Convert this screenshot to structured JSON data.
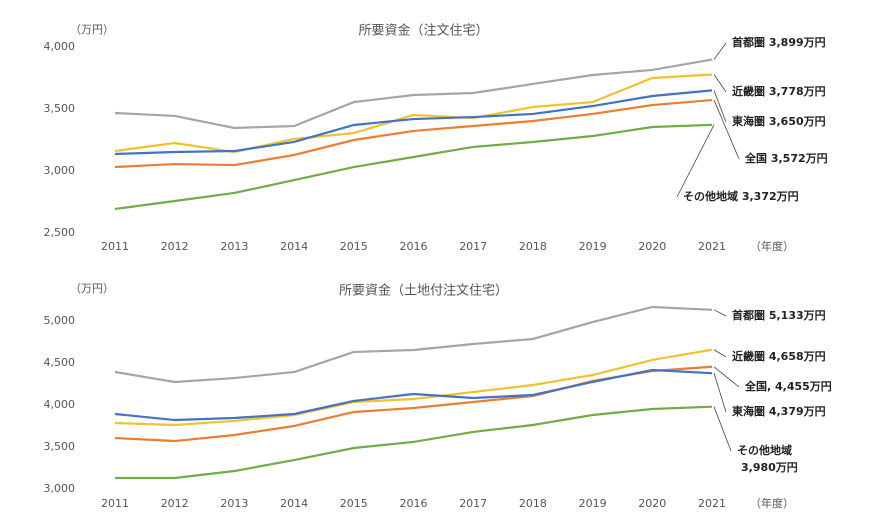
{
  "chart_data": [
    {
      "type": "line",
      "title": "所要資金（注文住宅）",
      "y_unit": "（万円）",
      "x_unit": "（年度）",
      "categories": [
        "2011",
        "2012",
        "2013",
        "2014",
        "2015",
        "2016",
        "2017",
        "2018",
        "2019",
        "2020",
        "2021"
      ],
      "ylim": [
        2500,
        4000
      ],
      "yticks": [
        {
          "value": 2500,
          "label": "2,500"
        },
        {
          "value": 3000,
          "label": "3,000"
        },
        {
          "value": 3500,
          "label": "3,500"
        },
        {
          "value": 4000,
          "label": "4,000"
        }
      ],
      "grid": false,
      "series": [
        {
          "name": "首都圏 3,899万円",
          "color": "#a5a5a5",
          "values": [
            3468,
            3444,
            3347,
            3363,
            3556,
            3613,
            3629,
            3702,
            3774,
            3815,
            3899
          ]
        },
        {
          "name": "近畿圏 3,778万円",
          "color": "#f2c12e",
          "values": [
            3161,
            3226,
            3153,
            3258,
            3306,
            3452,
            3427,
            3516,
            3556,
            3750,
            3778
          ]
        },
        {
          "name": "東海圏 3,650万円",
          "color": "#4472c4",
          "values": [
            3137,
            3153,
            3161,
            3234,
            3371,
            3419,
            3435,
            3460,
            3524,
            3605,
            3650
          ]
        },
        {
          "name": "全国 3,572万円",
          "color": "#ed7d31",
          "values": [
            3032,
            3056,
            3048,
            3129,
            3250,
            3323,
            3363,
            3403,
            3460,
            3532,
            3572
          ]
        },
        {
          "name": "その他地域 3,372万円",
          "color": "#70ad47",
          "values": [
            2694,
            2758,
            2823,
            2927,
            3032,
            3113,
            3194,
            3234,
            3282,
            3355,
            3372
          ]
        }
      ]
    },
    {
      "type": "line",
      "title": "所要資金（土地付注文住宅）",
      "y_unit": "（万円）",
      "x_unit": "（年度）",
      "categories": [
        "2011",
        "2012",
        "2013",
        "2014",
        "2015",
        "2016",
        "2017",
        "2018",
        "2019",
        "2020",
        "2021"
      ],
      "ylim": [
        3000,
        5000
      ],
      "yticks": [
        {
          "value": 3000,
          "label": "3,000"
        },
        {
          "value": 3500,
          "label": "3,500"
        },
        {
          "value": 4000,
          "label": "4,000"
        },
        {
          "value": 4500,
          "label": "4,500"
        },
        {
          "value": 5000,
          "label": "5,000"
        }
      ],
      "grid": false,
      "series": [
        {
          "name": "首都圏 5,133万円",
          "color": "#a5a5a5",
          "values": [
            4393,
            4274,
            4321,
            4393,
            4631,
            4655,
            4726,
            4786,
            4988,
            5167,
            5133
          ]
        },
        {
          "name": "近畿圏 4,658万円",
          "color": "#f2c12e",
          "values": [
            3786,
            3762,
            3810,
            3881,
            4036,
            4071,
            4155,
            4238,
            4357,
            4536,
            4658
          ]
        },
        {
          "name": "全国, 4,455万円",
          "color": "#ed7d31",
          "values": [
            3607,
            3571,
            3643,
            3750,
            3917,
            3964,
            4036,
            4107,
            4286,
            4405,
            4455
          ]
        },
        {
          "name": "東海圏 4,379万円",
          "color": "#4472c4",
          "values": [
            3893,
            3821,
            3845,
            3893,
            4048,
            4131,
            4083,
            4119,
            4274,
            4417,
            4379
          ]
        },
        {
          "name": [
            "その他地域",
            "3,980万円"
          ],
          "color": "#70ad47",
          "values": [
            3131,
            3131,
            3214,
            3345,
            3488,
            3560,
            3679,
            3762,
            3881,
            3952,
            3980
          ]
        }
      ]
    }
  ]
}
